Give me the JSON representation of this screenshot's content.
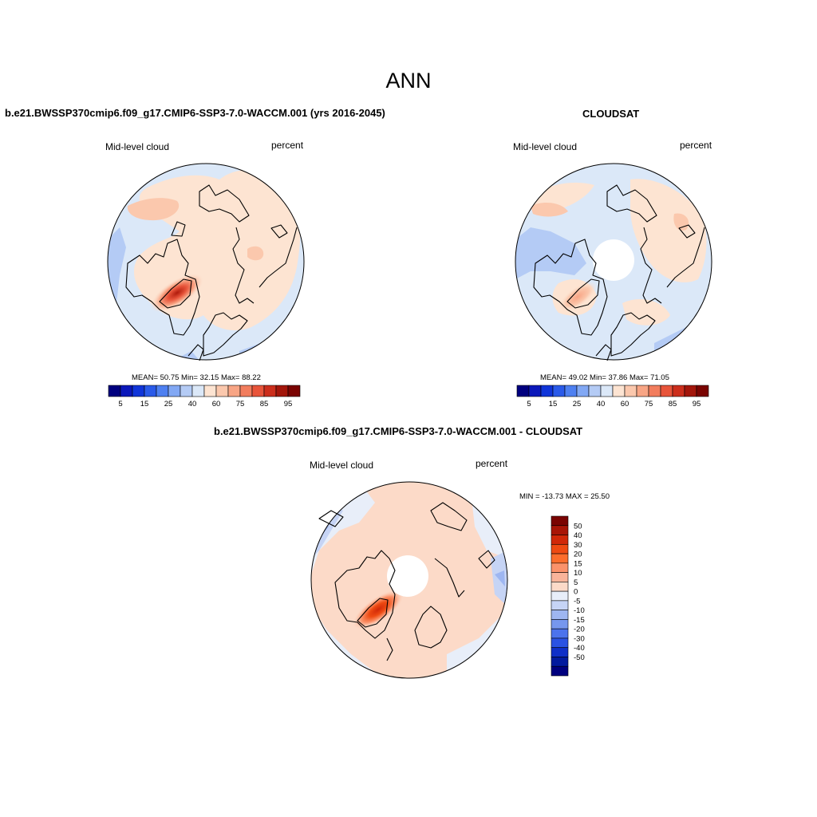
{
  "figure": {
    "season": "ANN",
    "panels": [
      {
        "id": "model",
        "title": "b.e21.BWSSP370cmip6.f09_g17.CMIP6-SSP3-7.0-WACCM.001 (yrs 2016-2045)",
        "left_label": "Mid-level cloud",
        "right_label": "percent",
        "stats": "MEAN=  50.75  Min=  32.15  Max=  88.22",
        "missing_pole": false,
        "hotspot": {
          "lon": -75,
          "lat": 67,
          "value": 88
        }
      },
      {
        "id": "obs",
        "title": "CLOUDSAT",
        "left_label": "Mid-level cloud",
        "right_label": "percent",
        "stats": "MEAN=  49.02  Min=  37.86  Max=  71.05",
        "missing_pole": true,
        "hotspot": {
          "lon": -85,
          "lat": 68,
          "value": 71
        }
      },
      {
        "id": "diff",
        "title": "b.e21.BWSSP370cmip6.f09_g17.CMIP6-SSP3-7.0-WACCM.001 - CLOUDSAT",
        "left_label": "Mid-level cloud",
        "right_label": "percent",
        "stats": "MIN = -13.73 MAX =  25.50",
        "missing_pole": true,
        "hotspot": {
          "lon": -75,
          "lat": 66,
          "value": 25.5
        }
      }
    ],
    "abs_colorbar": {
      "colors": [
        "#00007f",
        "#0b18ba",
        "#1035d9",
        "#2a5ae9",
        "#4e80f1",
        "#82a8f4",
        "#b4cbf5",
        "#dbe8f8",
        "#fde4d2",
        "#fbc8ad",
        "#f8a585",
        "#f27d5d",
        "#e8543a",
        "#cc2e1c",
        "#a3160b",
        "#7a0402"
      ],
      "tick_labels": [
        "5",
        "15",
        "25",
        "40",
        "60",
        "75",
        "85",
        "95"
      ]
    },
    "diff_colorbar": {
      "colors": [
        "#7a0402",
        "#a81507",
        "#d02809",
        "#ee4a12",
        "#fc6d2c",
        "#fb926a",
        "#f9b49a",
        "#fcdac8",
        "#e8eef9",
        "#c6d4f5",
        "#9eb6f1",
        "#7697ee",
        "#4c73ec",
        "#2a52e3",
        "#0f2fc8",
        "#021a9e",
        "#00007f"
      ],
      "tick_labels": [
        "50",
        "40",
        "30",
        "20",
        "15",
        "10",
        "5",
        "0",
        "-5",
        "-10",
        "-15",
        "-20",
        "-30",
        "-40",
        "-50"
      ]
    }
  }
}
